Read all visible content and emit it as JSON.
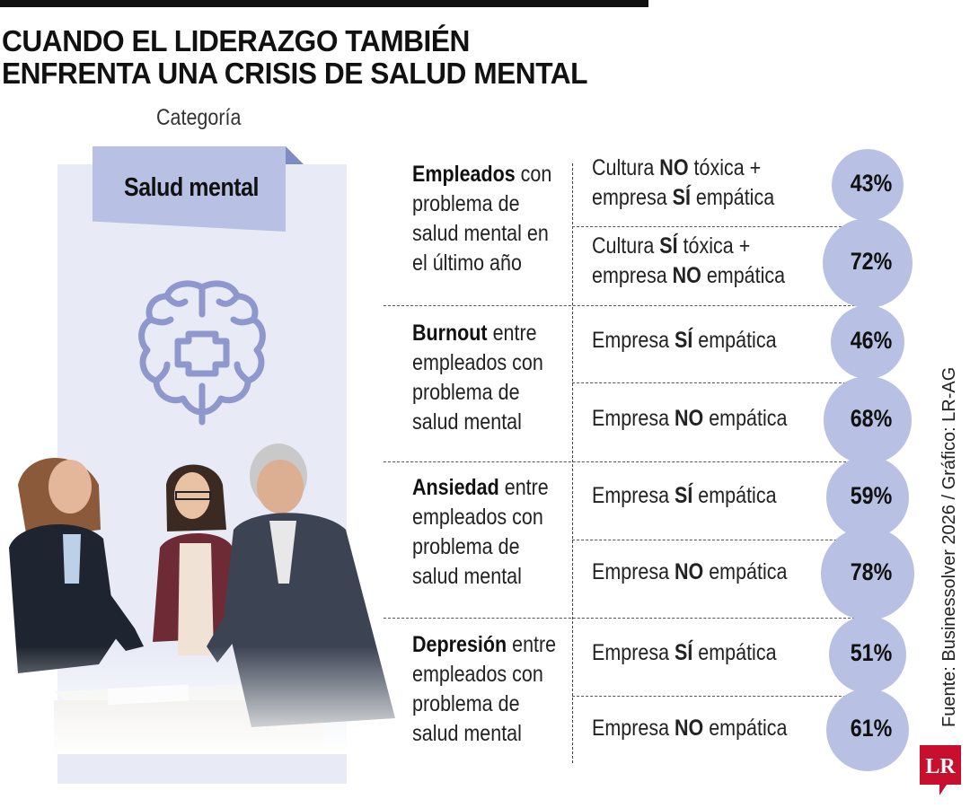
{
  "header": {
    "title_line1": "CUANDO EL LIDERAZGO TAMBIÉN",
    "title_line2": "ENFRENTA UNA CRISIS DE SALUD MENTAL",
    "category_label": "Categoría",
    "category_value": "Salud mental"
  },
  "illustration": {
    "brain_icon": "brain-with-cross-icon",
    "photo": "business-meeting-people"
  },
  "colors": {
    "bubble": "#b8c1e3",
    "panel": "#e8ebf6",
    "ribbon": "#b8c1e3",
    "icon": "#8e98cc",
    "logo": "#c8102e"
  },
  "chart_data": {
    "type": "table",
    "unit": "%",
    "groups": [
      {
        "bold": "Empleados",
        "rest_line1": " con",
        "lines": [
          "problema de",
          "salud mental en",
          "el último año"
        ],
        "rows": [
          {
            "pre": "Cultura ",
            "k1": "NO",
            "mid": " tóxica +",
            "pre2": "empresa ",
            "k2": "SÍ",
            "post2": " empática",
            "value": 43,
            "label": "43%"
          },
          {
            "pre": "Cultura ",
            "k1": "SÍ",
            "mid": " tóxica +",
            "pre2": "empresa ",
            "k2": "NO",
            "post2": " empática",
            "value": 72,
            "label": "72%"
          }
        ]
      },
      {
        "bold": "Burnout",
        "rest_line1": " entre",
        "lines": [
          "empleados con",
          "problema de",
          "salud mental"
        ],
        "rows": [
          {
            "pre": "Empresa ",
            "k1": "SÍ",
            "mid": " empática",
            "value": 46,
            "label": "46%"
          },
          {
            "pre": "Empresa ",
            "k1": "NO",
            "mid": " empática",
            "value": 68,
            "label": "68%"
          }
        ]
      },
      {
        "bold": "Ansiedad",
        "rest_line1": " entre",
        "lines": [
          "empleados con",
          "problema de",
          "salud mental"
        ],
        "rows": [
          {
            "pre": "Empresa ",
            "k1": "SÍ",
            "mid": " empática",
            "value": 59,
            "label": "59%"
          },
          {
            "pre": "Empresa ",
            "k1": "NO",
            "mid": " empática",
            "value": 78,
            "label": "78%"
          }
        ]
      },
      {
        "bold": "Depresión",
        "rest_line1": " entre",
        "lines": [
          "empleados con",
          "problema de",
          "salud mental"
        ],
        "rows": [
          {
            "pre": "Empresa ",
            "k1": "SÍ",
            "mid": " empática",
            "value": 51,
            "label": "51%"
          },
          {
            "pre": "Empresa ",
            "k1": "NO",
            "mid": " empática",
            "value": 61,
            "label": "61%"
          }
        ]
      }
    ]
  },
  "footer": {
    "source": "Fuente: Businessolver 2026 / Gráfico: LR-AG",
    "logo_text": "LR"
  }
}
